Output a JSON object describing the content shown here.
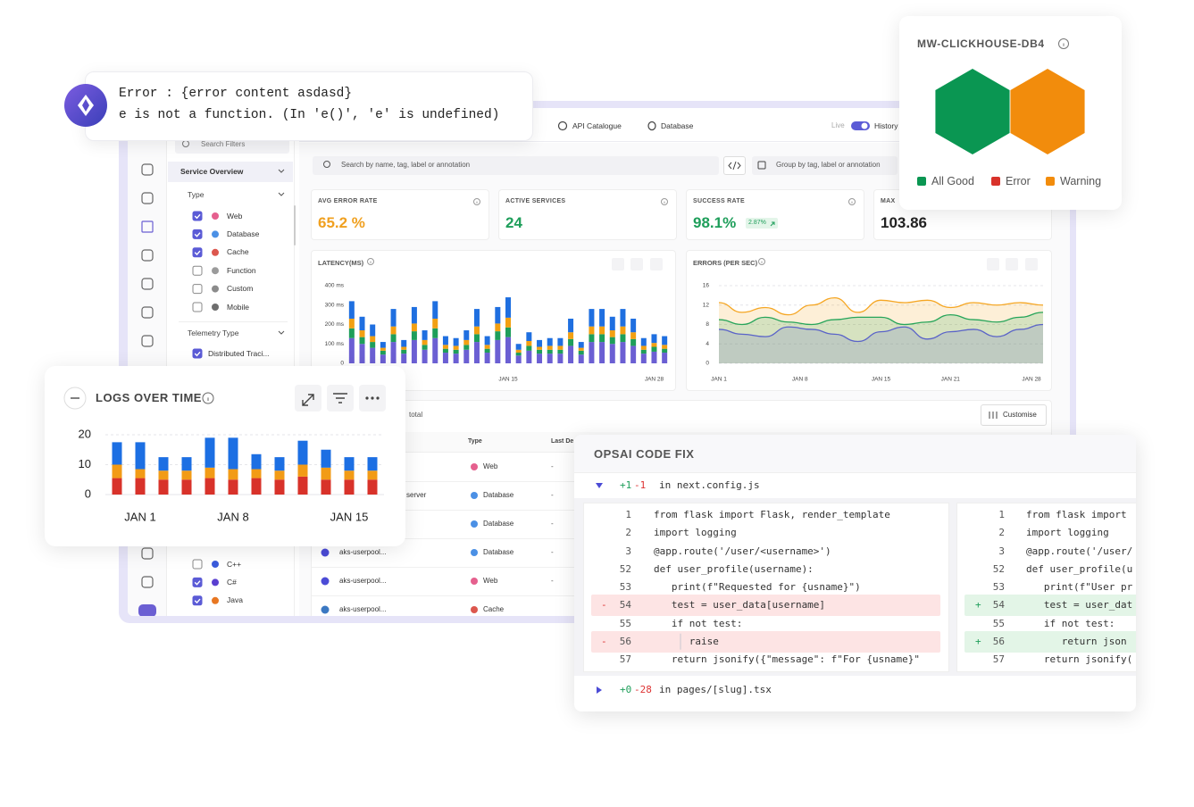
{
  "nav": {
    "tabs": [
      "API Catalogue",
      "Database"
    ],
    "live": "Live",
    "history": "History"
  },
  "filters": {
    "search": "Search Filters",
    "section": "Service Overview",
    "type_heading": "Type",
    "types": [
      {
        "label": "Web",
        "checked": true,
        "color": "#e0447a"
      },
      {
        "label": "Database",
        "checked": true,
        "color": "#2b7de0"
      },
      {
        "label": "Cache",
        "checked": true,
        "color": "#d63a2f"
      },
      {
        "label": "Function",
        "checked": false,
        "color": "#8a8a8a"
      },
      {
        "label": "Custom",
        "checked": false,
        "color": "#777777"
      },
      {
        "label": "Mobile",
        "checked": false,
        "color": "#555555"
      }
    ],
    "telemetry_heading": "Telemetry Type",
    "telemetry": [
      {
        "label": "Distributed Traci...",
        "checked": true
      }
    ],
    "languages": [
      {
        "label": "C++",
        "checked": false,
        "color": "#3b5bdb"
      },
      {
        "label": "C#",
        "checked": true,
        "color": "#5a3fd0"
      },
      {
        "label": "Java",
        "checked": true,
        "color": "#e87722"
      }
    ]
  },
  "search": {
    "placeholder": "Search by name, tag, label or annotation",
    "group_by": "Group by tag, label or annotation"
  },
  "stats": [
    {
      "label": "AVG ERROR RATE",
      "value": "65.2 %",
      "color": "#f0a020"
    },
    {
      "label": "ACTIVE SERVICES",
      "value": "24",
      "color": "#1e9e5a"
    },
    {
      "label": "SUCCESS RATE",
      "value": "98.1%",
      "badge": "2.87%",
      "color": "#1e9e5a"
    },
    {
      "label": "MAX",
      "value": "103.86",
      "color": "#222222"
    }
  ],
  "table": {
    "total": "total",
    "customise": "Customise",
    "headers": [
      "Type",
      "Last De"
    ],
    "rows": [
      {
        "type": "Web",
        "type_color": "#e0447a",
        "last": "-"
      },
      {
        "service": "server",
        "type": "Database",
        "type_color": "#2b7de0",
        "last": "-"
      },
      {
        "type": "Database",
        "type_color": "#2b7de0",
        "last": "-"
      },
      {
        "service": "aks-userpool...",
        "service_color": "#4b4bd6",
        "type": "Database",
        "type_color": "#2b7de0",
        "last": "-"
      },
      {
        "service": "aks-userpool...",
        "service_color": "#4b4bd6",
        "type": "Web",
        "type_color": "#e0447a",
        "last": "-"
      },
      {
        "service": "aks-userpool...",
        "service_color": "#3b78c2",
        "type": "Cache",
        "type_color": "#d63a2f"
      }
    ]
  },
  "error_popup": {
    "lines": [
      "Error : {error content asdasd}",
      "e is not a function. (In 'e()', 'e' is undefined)"
    ]
  },
  "hex_card": {
    "title": "MW-CLICKHOUSE-DB4",
    "legend": [
      {
        "name": "All Good",
        "color": "#0a9652"
      },
      {
        "name": "Error",
        "color": "#d8322a"
      },
      {
        "name": "Warning",
        "color": "#f28c0c"
      }
    ],
    "cells": [
      "All Good",
      "Warning"
    ]
  },
  "chart_data": [
    {
      "type": "bar",
      "stacked": true,
      "title": "LATENCY(MS)",
      "categories": [
        null,
        null,
        null,
        null,
        null,
        null,
        null,
        null,
        null,
        null,
        null,
        null,
        null,
        null,
        null,
        "JAN 15",
        null,
        null,
        null,
        null,
        null,
        null,
        null,
        null,
        null,
        null,
        null,
        null,
        null,
        "JAN 28",
        null
      ],
      "series": [
        {
          "color": "#6b5fd3",
          "values": [
            130,
            100,
            80,
            45,
            110,
            50,
            120,
            70,
            130,
            55,
            50,
            70,
            110,
            55,
            120,
            135,
            40,
            65,
            50,
            50,
            50,
            90,
            45,
            110,
            110,
            100,
            110,
            90,
            50,
            60,
            55
          ]
        },
        {
          "color": "#1e9e5a",
          "values": [
            50,
            35,
            30,
            20,
            40,
            20,
            45,
            25,
            50,
            20,
            20,
            25,
            40,
            20,
            45,
            50,
            15,
            25,
            20,
            20,
            20,
            35,
            20,
            40,
            40,
            35,
            40,
            35,
            20,
            25,
            20
          ]
        },
        {
          "color": "#f2a012",
          "values": [
            50,
            35,
            30,
            15,
            40,
            15,
            40,
            25,
            50,
            20,
            20,
            25,
            40,
            20,
            40,
            50,
            15,
            25,
            15,
            20,
            20,
            35,
            15,
            40,
            40,
            35,
            40,
            35,
            20,
            20,
            20
          ]
        },
        {
          "color": "#1f6fe0",
          "values": [
            90,
            70,
            60,
            30,
            90,
            35,
            85,
            50,
            90,
            45,
            40,
            50,
            90,
            45,
            85,
            105,
            30,
            45,
            35,
            40,
            40,
            70,
            30,
            90,
            90,
            70,
            90,
            70,
            40,
            45,
            45
          ]
        }
      ],
      "ylim": [
        0,
        400
      ],
      "yticks": [
        0,
        {
          "value": 100,
          "label": "100 ms"
        },
        {
          "value": 200,
          "label": "200 ms"
        },
        {
          "value": 300,
          "label": "300 ms"
        },
        {
          "value": 400,
          "label": "400 ms"
        }
      ],
      "grid": false
    },
    {
      "type": "area",
      "title": "ERRORS (PER SEC)",
      "x": [
        1,
        3,
        5,
        7,
        9,
        11,
        13,
        15,
        17,
        19,
        21,
        23,
        25,
        27,
        29
      ],
      "xlim": [
        1,
        29
      ],
      "xticks": [
        {
          "value": 1,
          "label": "JAN 1"
        },
        {
          "value": 8,
          "label": "JAN 8"
        },
        {
          "value": 15,
          "label": "JAN 15"
        },
        {
          "value": 21,
          "label": "JAN 21"
        },
        {
          "value": 28,
          "label": "JAN 28"
        }
      ],
      "series": [
        {
          "color": "#f5a623",
          "values": [
            12.5,
            10.5,
            11.5,
            10,
            12,
            13.5,
            10.5,
            13,
            12.5,
            13,
            11.5,
            12.5,
            12,
            12.5,
            12
          ]
        },
        {
          "color": "#27a55a",
          "values": [
            9,
            8,
            9.5,
            8.5,
            8,
            9,
            9.5,
            9.5,
            8,
            8.5,
            10,
            9,
            8.5,
            9.5,
            10.5
          ]
        },
        {
          "color": "#5a63c8",
          "values": [
            7,
            6,
            5.5,
            7.5,
            7,
            6,
            4.5,
            6.5,
            7.5,
            5,
            6.5,
            7,
            5.5,
            7,
            8
          ]
        }
      ],
      "ylim": [
        0,
        16
      ],
      "yticks": [
        0,
        4,
        8,
        12,
        16
      ],
      "grid": true
    },
    {
      "type": "bar",
      "stacked": true,
      "title": "LOGS OVER TIME",
      "categories": [
        null,
        "JAN 1",
        null,
        null,
        null,
        "JAN 8",
        null,
        null,
        null,
        null,
        "JAN 15",
        null
      ],
      "series": [
        {
          "color": "#d8322a",
          "values": [
            5.5,
            5.5,
            5,
            5,
            5.5,
            5,
            5.5,
            5,
            6,
            5,
            5,
            5
          ]
        },
        {
          "color": "#f29b16",
          "values": [
            4.5,
            3,
            3,
            3,
            3.5,
            3.5,
            3,
            3,
            4,
            4,
            3,
            3
          ]
        },
        {
          "color": "#1c6fe3",
          "values": [
            7.5,
            9,
            4.5,
            4.5,
            10,
            10.5,
            5,
            4.5,
            8,
            6,
            4.5,
            4.5
          ]
        }
      ],
      "ylim": [
        0,
        20
      ],
      "yticks": [
        0,
        10,
        20
      ],
      "grid": true
    }
  ],
  "code_fix": {
    "title": "OPSAI CODE FIX",
    "files": [
      {
        "added": "+1",
        "removed": "-1",
        "path": "in next.config.js"
      },
      {
        "added": "+0",
        "removed": "-28",
        "path": "in pages/[slug].tsx"
      }
    ],
    "left": [
      {
        "num": 1,
        "code": "from flask import Flask, render_template"
      },
      {
        "num": 2,
        "code": "import logging"
      },
      {
        "num": 3,
        "code": "@app.route('/user/<username>')"
      },
      {
        "num": 52,
        "code": "def user_profile(username):"
      },
      {
        "num": 53,
        "code": "   print(f\"Requested for {usname}\")"
      },
      {
        "num": 54,
        "code": "   test = user_data[username]",
        "change": "-"
      },
      {
        "num": 55,
        "code": "   if not test:"
      },
      {
        "num": 56,
        "code": "      raise",
        "change": "-"
      },
      {
        "num": 57,
        "code": "   return jsonify({\"message\": f\"For {usname}\""
      }
    ],
    "right": [
      {
        "num": 1,
        "code": "from flask import"
      },
      {
        "num": 2,
        "code": "import logging"
      },
      {
        "num": 3,
        "code": "@app.route('/user/"
      },
      {
        "num": 52,
        "code": "def user_profile(u"
      },
      {
        "num": 53,
        "code": "   print(f\"User pr"
      },
      {
        "num": 54,
        "code": "   test = user_dat",
        "change": "+"
      },
      {
        "num": 55,
        "code": "   if not test:"
      },
      {
        "num": 56,
        "code": "      return json",
        "change": "+"
      },
      {
        "num": 57,
        "code": "   return jsonify("
      }
    ]
  }
}
